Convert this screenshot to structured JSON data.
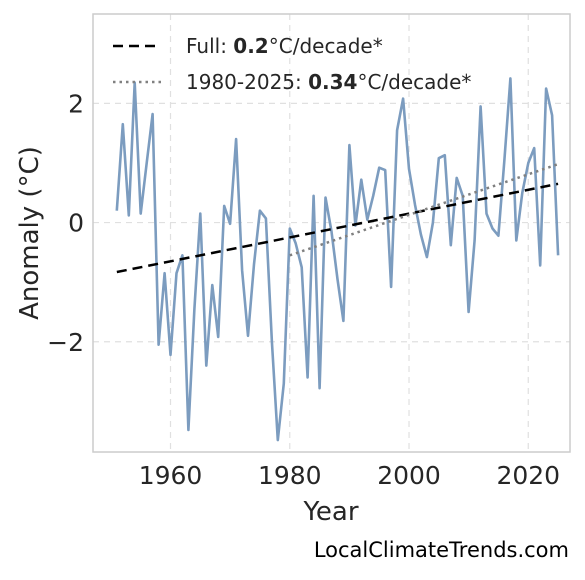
{
  "chart_data": {
    "type": "line",
    "title": "",
    "xlabel": "Year",
    "ylabel": "Anomaly (°C)",
    "xlim": [
      1947,
      2027
    ],
    "ylim": [
      -3.85,
      3.5
    ],
    "xticks": [
      1960,
      1980,
      2000,
      2020
    ],
    "yticks": [
      -2,
      0,
      2
    ],
    "ytick_labels": [
      "−2",
      "0",
      "2"
    ],
    "grid": true,
    "legend_position": "top-left",
    "colors": {
      "series": "#7c9cbf",
      "full_trend": "#000000",
      "recent_trend": "#808080"
    },
    "series": [
      {
        "name": "",
        "x": [
          1951,
          1952,
          1953,
          1954,
          1955,
          1956,
          1957,
          1958,
          1959,
          1960,
          1961,
          1962,
          1963,
          1964,
          1965,
          1966,
          1967,
          1968,
          1969,
          1970,
          1971,
          1972,
          1973,
          1974,
          1975,
          1976,
          1977,
          1978,
          1979,
          1980,
          1981,
          1982,
          1983,
          1984,
          1985,
          1986,
          1987,
          1988,
          1989,
          1990,
          1991,
          1992,
          1993,
          1994,
          1995,
          1996,
          1997,
          1998,
          1999,
          2000,
          2001,
          2002,
          2003,
          2004,
          2005,
          2006,
          2007,
          2008,
          2009,
          2010,
          2011,
          2012,
          2013,
          2014,
          2015,
          2016,
          2017,
          2018,
          2019,
          2020,
          2021,
          2022,
          2023,
          2024,
          2025
        ],
        "values": [
          0.2,
          1.65,
          0.12,
          2.35,
          0.15,
          1.0,
          1.82,
          -2.05,
          -0.85,
          -2.22,
          -0.85,
          -0.55,
          -3.48,
          -1.45,
          0.15,
          -2.4,
          -1.05,
          -1.92,
          0.28,
          -0.02,
          1.4,
          -0.8,
          -1.9,
          -0.7,
          0.2,
          0.07,
          -2.0,
          -3.65,
          -2.7,
          -0.1,
          -0.35,
          -0.75,
          -2.6,
          0.45,
          -2.78,
          0.42,
          -0.15,
          -0.95,
          -1.65,
          1.3,
          -0.05,
          0.72,
          0.05,
          0.45,
          0.92,
          0.88,
          -1.08,
          1.55,
          2.08,
          0.9,
          0.3,
          -0.2,
          -0.58,
          0.0,
          1.08,
          1.13,
          -0.38,
          0.75,
          0.45,
          -1.5,
          -0.3,
          1.95,
          0.15,
          -0.1,
          -0.22,
          1.05,
          2.42,
          -0.3,
          0.5,
          1.0,
          1.25,
          -0.72,
          2.25,
          1.8,
          -0.55
        ]
      }
    ],
    "trends": [
      {
        "x": [
          1951,
          2025
        ],
        "y": [
          -0.83,
          0.65
        ]
      },
      {
        "x": [
          1980,
          2025
        ],
        "y": [
          -0.55,
          0.98
        ]
      }
    ],
    "legend": [
      {
        "prefix": "Full: ",
        "bold": "0.2",
        "suffix": "°C/decade*"
      },
      {
        "prefix": "1980-2025: ",
        "bold": "0.34",
        "suffix": "°C/decade*"
      }
    ]
  },
  "watermark": "LocalClimateTrends.com"
}
